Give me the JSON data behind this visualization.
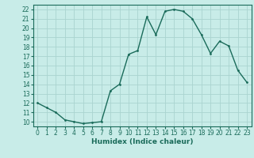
{
  "x": [
    0,
    1,
    2,
    3,
    4,
    5,
    6,
    7,
    8,
    9,
    10,
    11,
    12,
    13,
    14,
    15,
    16,
    17,
    18,
    19,
    20,
    21,
    22,
    23
  ],
  "y": [
    12.0,
    11.5,
    11.0,
    10.2,
    10.0,
    9.8,
    9.9,
    10.0,
    13.3,
    14.0,
    17.2,
    17.6,
    21.2,
    19.3,
    21.8,
    22.0,
    21.8,
    21.0,
    19.3,
    17.3,
    18.6,
    18.1,
    15.5,
    14.2
  ],
  "line_color": "#1a6b5a",
  "marker": "o",
  "marker_size": 2,
  "bg_color": "#c8ece8",
  "grid_color": "#aad4cf",
  "axis_color": "#1a6b5a",
  "xlabel": "Humidex (Indice chaleur)",
  "xlim": [
    -0.5,
    23.5
  ],
  "ylim": [
    9.5,
    22.5
  ],
  "yticks": [
    10,
    11,
    12,
    13,
    14,
    15,
    16,
    17,
    18,
    19,
    20,
    21,
    22
  ],
  "xticks": [
    0,
    1,
    2,
    3,
    4,
    5,
    6,
    7,
    8,
    9,
    10,
    11,
    12,
    13,
    14,
    15,
    16,
    17,
    18,
    19,
    20,
    21,
    22,
    23
  ],
  "tick_fontsize": 5.5,
  "label_fontsize": 6.5
}
